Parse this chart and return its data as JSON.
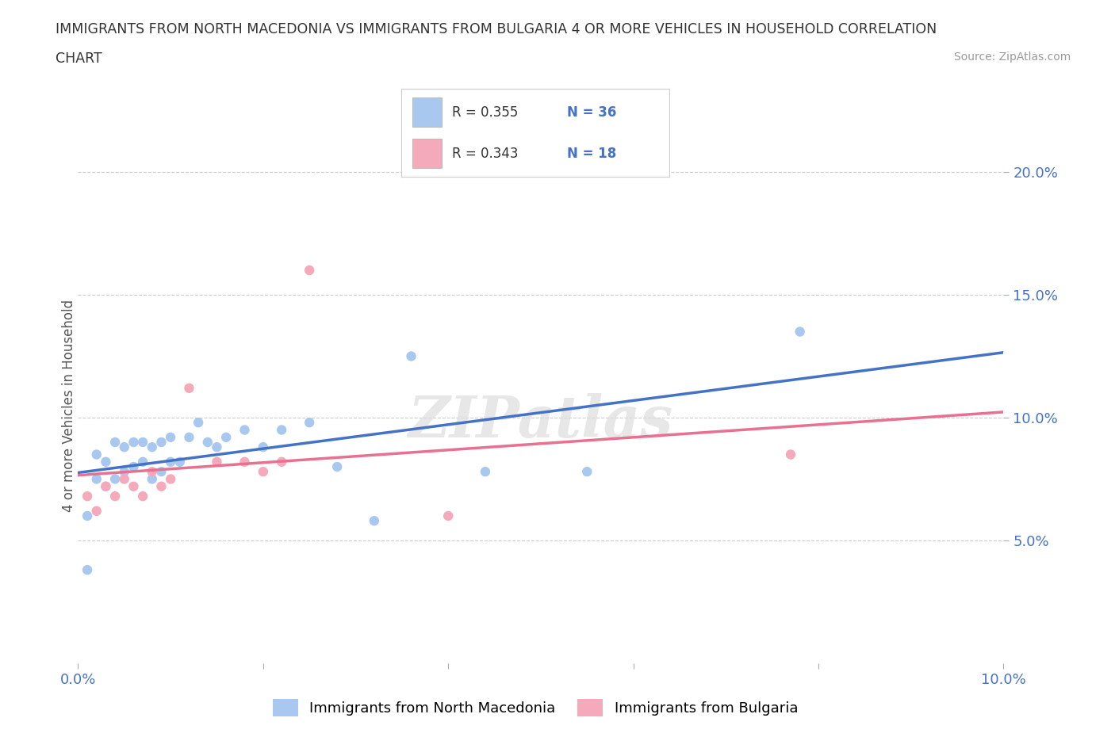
{
  "title_line1": "IMMIGRANTS FROM NORTH MACEDONIA VS IMMIGRANTS FROM BULGARIA 4 OR MORE VEHICLES IN HOUSEHOLD CORRELATION",
  "title_line2": "CHART",
  "source_text": "Source: ZipAtlas.com",
  "ylabel": "4 or more Vehicles in Household",
  "xlim": [
    0.0,
    0.1
  ],
  "ylim": [
    0.0,
    0.21
  ],
  "ytick_positions": [
    0.05,
    0.1,
    0.15,
    0.2
  ],
  "ytick_labels": [
    "5.0%",
    "10.0%",
    "15.0%",
    "20.0%"
  ],
  "xtick_positions": [
    0.0,
    0.02,
    0.04,
    0.06,
    0.08,
    0.1
  ],
  "xtick_labels": [
    "0.0%",
    "",
    "",
    "",
    "",
    "10.0%"
  ],
  "blue_color": "#A8C8F0",
  "pink_color": "#F5AABB",
  "blue_line_color": "#4472C4",
  "pink_line_color": "#E87090",
  "tick_label_color": "#4472C4",
  "watermark_text": "ZIPatlas",
  "label1": "Immigrants from North Macedonia",
  "label2": "Immigrants from Bulgaria",
  "legend_r1": "R = 0.355",
  "legend_n1": "N = 36",
  "legend_r2": "R = 0.343",
  "legend_n2": "N = 18",
  "grid_color": "#CCCCCC",
  "background_color": "#FFFFFF",
  "macedonia_x": [
    0.001,
    0.001,
    0.002,
    0.002,
    0.003,
    0.003,
    0.004,
    0.004,
    0.005,
    0.005,
    0.006,
    0.006,
    0.007,
    0.007,
    0.008,
    0.008,
    0.009,
    0.009,
    0.01,
    0.01,
    0.011,
    0.012,
    0.013,
    0.014,
    0.015,
    0.016,
    0.018,
    0.02,
    0.022,
    0.025,
    0.028,
    0.032,
    0.036,
    0.044,
    0.055,
    0.078
  ],
  "macedonia_y": [
    0.038,
    0.06,
    0.075,
    0.085,
    0.072,
    0.082,
    0.075,
    0.09,
    0.078,
    0.088,
    0.08,
    0.09,
    0.082,
    0.09,
    0.075,
    0.088,
    0.078,
    0.09,
    0.082,
    0.092,
    0.082,
    0.092,
    0.098,
    0.09,
    0.088,
    0.092,
    0.095,
    0.088,
    0.095,
    0.098,
    0.08,
    0.058,
    0.125,
    0.078,
    0.078,
    0.135
  ],
  "bulgaria_x": [
    0.001,
    0.002,
    0.003,
    0.004,
    0.005,
    0.006,
    0.007,
    0.008,
    0.009,
    0.01,
    0.012,
    0.015,
    0.018,
    0.02,
    0.022,
    0.025,
    0.04,
    0.077
  ],
  "bulgaria_y": [
    0.068,
    0.062,
    0.072,
    0.068,
    0.075,
    0.072,
    0.068,
    0.078,
    0.072,
    0.075,
    0.112,
    0.082,
    0.082,
    0.078,
    0.082,
    0.16,
    0.06,
    0.085
  ]
}
